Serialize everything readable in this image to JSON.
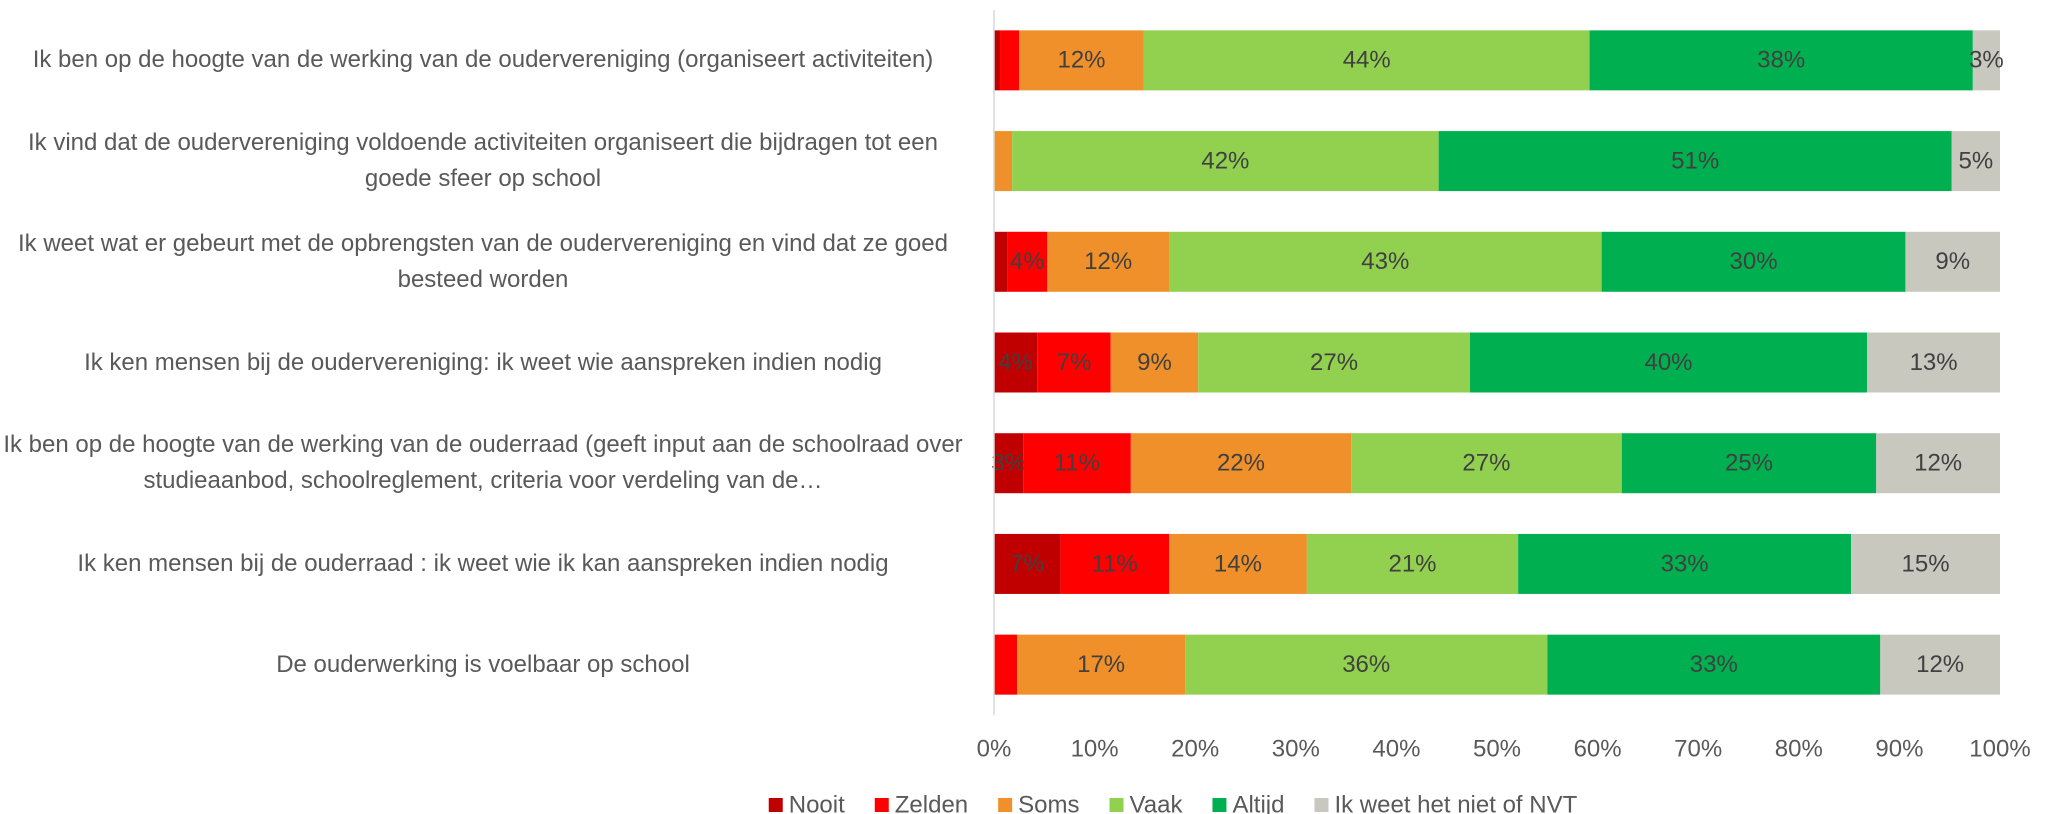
{
  "chart_data": {
    "type": "stacked_barh",
    "categories": [
      "Ik ben op de hoogte van de werking van de oudervereniging (organiseert activiteiten)",
      "Ik vind dat de oudervereniging voldoende activiteiten organiseert die bijdragen tot een goede sfeer op school",
      "Ik weet wat er gebeurt met de opbrengsten van de oudervereniging en vind dat ze goed besteed worden",
      "Ik ken mensen bij de oudervereniging: ik weet wie aanspreken indien nodig",
      "Ik ben op de hoogte van de werking van de ouderraad (geeft input aan de schoolraad over studieaanbod, schoolreglement, criteria voor verdeling van de…",
      "Ik ken mensen bij de ouderraad : ik weet wie ik kan aanspreken indien nodig",
      "De ouderwerking is voelbaar op school"
    ],
    "series": [
      {
        "name": "Nooit",
        "color": "#c00000",
        "values": [
          0.6,
          0,
          1.3,
          4.3,
          2.9,
          6.6,
          0
        ],
        "value_labels": [
          null,
          null,
          null,
          "4%",
          "3%",
          "7%",
          null
        ]
      },
      {
        "name": "Zelden",
        "color": "#ff0000",
        "values": [
          1.9,
          0,
          4.0,
          7.3,
          10.7,
          10.8,
          2.3
        ],
        "value_labels": [
          null,
          null,
          "4%",
          "7%",
          "11%",
          "11%",
          null
        ]
      },
      {
        "name": "Soms",
        "color": "#f0902a",
        "values": [
          12.4,
          1.8,
          12.1,
          8.7,
          21.9,
          13.7,
          16.7
        ],
        "value_labels": [
          "12%",
          null,
          "12%",
          "9%",
          "22%",
          "14%",
          "17%"
        ]
      },
      {
        "name": "Vaak",
        "color": "#92d050",
        "values": [
          44.3,
          42.4,
          43.0,
          27.0,
          26.9,
          21.0,
          36.0
        ],
        "value_labels": [
          "44%",
          "42%",
          "43%",
          "27%",
          "27%",
          "21%",
          "36%"
        ]
      },
      {
        "name": "Altijd",
        "color": "#00b050",
        "values": [
          38.1,
          51.0,
          30.2,
          39.5,
          25.3,
          33.1,
          33.1
        ],
        "value_labels": [
          "38%",
          "51%",
          "30%",
          "40%",
          "25%",
          "33%",
          "33%"
        ]
      },
      {
        "name": "Ik weet het niet of NVT",
        "color": "#c9c8bf",
        "values": [
          2.7,
          4.8,
          9.4,
          13.2,
          12.3,
          14.8,
          11.9
        ],
        "value_labels": [
          "3%",
          "5%",
          "9%",
          "13%",
          "12%",
          "15%",
          "12%"
        ]
      }
    ],
    "xlim": [
      0,
      100
    ],
    "xticks": [
      {
        "value": 0,
        "label": "0%"
      },
      {
        "value": 10,
        "label": "10%"
      },
      {
        "value": 20,
        "label": "20%"
      },
      {
        "value": 30,
        "label": "30%"
      },
      {
        "value": 40,
        "label": "40%"
      },
      {
        "value": 50,
        "label": "50%"
      },
      {
        "value": 60,
        "label": "60%"
      },
      {
        "value": 70,
        "label": "70%"
      },
      {
        "value": 80,
        "label": "80%"
      },
      {
        "value": 90,
        "label": "90%"
      },
      {
        "value": 100,
        "label": "100%"
      }
    ],
    "grid": false,
    "legend": "bottom"
  }
}
